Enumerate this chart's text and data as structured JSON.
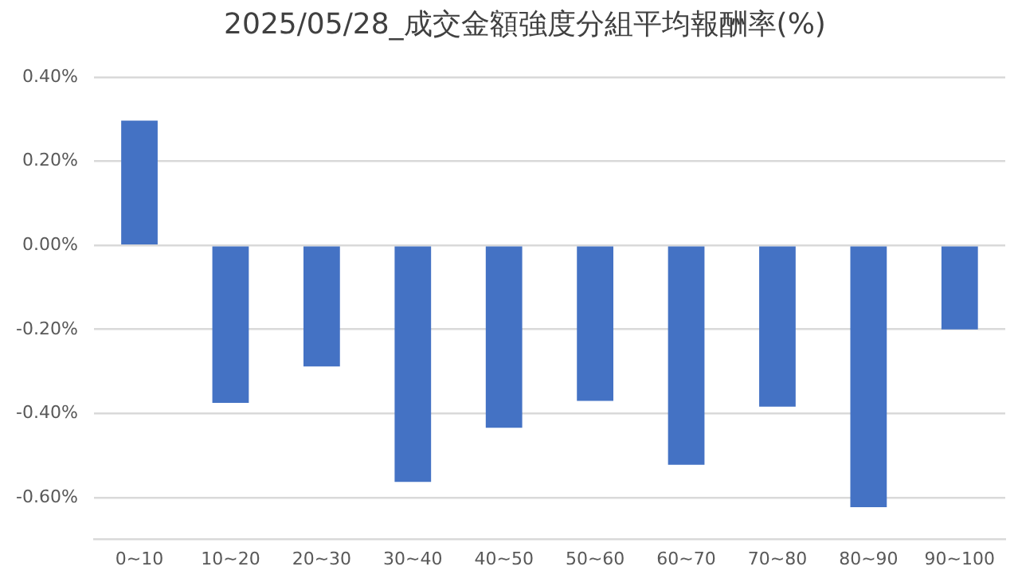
{
  "chart_data": {
    "type": "bar",
    "title": "2025/05/28_成交金額強度分組平均報酬率(%)",
    "categories": [
      "0~10",
      "10~20",
      "20~30",
      "30~40",
      "40~50",
      "50~60",
      "60~70",
      "70~80",
      "80~90",
      "90~100"
    ],
    "values": [
      0.297,
      -0.375,
      -0.288,
      -0.563,
      -0.434,
      -0.37,
      -0.522,
      -0.384,
      -0.623,
      -0.2
    ],
    "color": "#4472c4",
    "ylim": [
      -0.7,
      0.4
    ],
    "yticks": [
      {
        "value": -0.6,
        "label": "-0.60%"
      },
      {
        "value": -0.4,
        "label": "-0.40%"
      },
      {
        "value": -0.2,
        "label": "-0.20%"
      },
      {
        "value": 0,
        "label": "0.00%"
      },
      {
        "value": 0.2,
        "label": "0.20%"
      },
      {
        "value": 0.4,
        "label": "0.40%"
      }
    ],
    "grid": "y",
    "legend": false
  }
}
